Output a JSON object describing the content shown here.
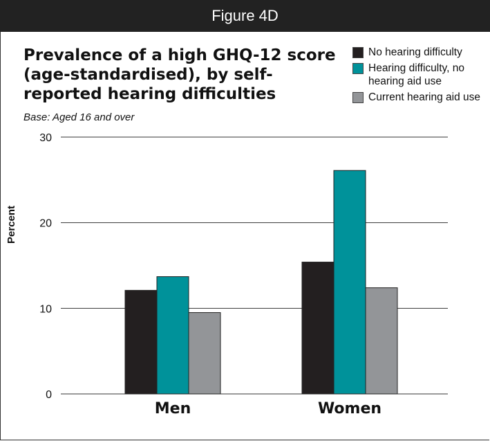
{
  "header": {
    "figure_label": "Figure 4D"
  },
  "chart_data": {
    "type": "bar",
    "title": "Prevalence of a high GHQ-12 score (age-standardised), by self-reported hearing difficulties",
    "subtitle": "Base: Aged 16 and over",
    "xlabel": "",
    "ylabel": "Percent",
    "ylim": [
      0,
      30
    ],
    "yticks": [
      0,
      10,
      20,
      30
    ],
    "grid": true,
    "legend_position": "top-right",
    "categories": [
      "Men",
      "Women"
    ],
    "series": [
      {
        "name": "No hearing difficulty",
        "color": "#231f20",
        "values": [
          12.1,
          15.4
        ]
      },
      {
        "name": "Hearing difficulty, no hearing aid use",
        "color": "#00929a",
        "values": [
          13.7,
          26.1
        ]
      },
      {
        "name": "Current hearing aid use",
        "color": "#939598",
        "values": [
          9.5,
          12.4
        ]
      }
    ]
  }
}
